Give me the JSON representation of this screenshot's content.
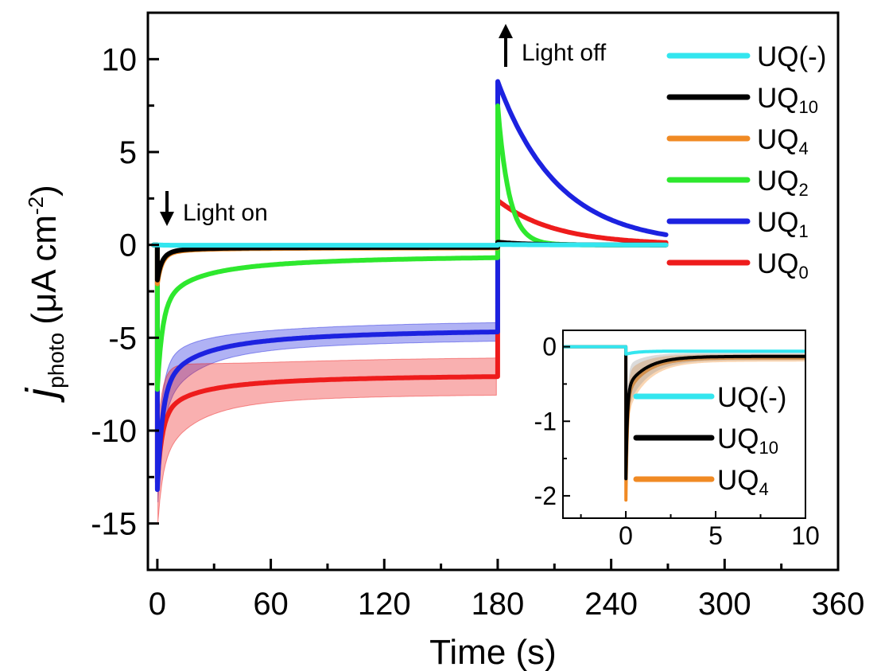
{
  "chart_data": [
    {
      "type": "line",
      "xlabel": "Time (s)",
      "ylabel": {
        "main": "j",
        "sub": "photo",
        "units": "(μA cm",
        "sup": "-2",
        "close": ")"
      },
      "xlim": [
        -5,
        360
      ],
      "ylim": [
        -17.5,
        12.5
      ],
      "xticks": [
        0,
        60,
        120,
        180,
        240,
        300,
        360
      ],
      "yticks": [
        10,
        5,
        0,
        -5,
        -10,
        -15
      ],
      "annotations": [
        {
          "text": "Light on",
          "x": 0,
          "arrow": "down"
        },
        {
          "text": "Light off",
          "x": 180,
          "arrow": "up"
        }
      ],
      "legend_position": "top-right",
      "series": [
        {
          "key": "UQ(-)",
          "label": "UQ(-)",
          "sub": "",
          "color": "#33e6ef",
          "on": 0,
          "steady": -0.02,
          "off_peak": 0.02,
          "tau_off": 20
        },
        {
          "key": "UQ10",
          "label": "UQ",
          "sub": "10",
          "color": "#000000",
          "on": -1.9,
          "steady": -0.12,
          "off_peak": 0.15,
          "tau_off": 15
        },
        {
          "key": "UQ4",
          "label": "UQ",
          "sub": "4",
          "color": "#f08a24",
          "on": -2.1,
          "steady": -0.15,
          "off_peak": 0.1,
          "tau_off": 15
        },
        {
          "key": "UQ2",
          "label": "UQ",
          "sub": "2",
          "color": "#2ee82e",
          "on": -7.8,
          "steady": -0.45,
          "off_peak": 7.5,
          "tau_off": 6
        },
        {
          "key": "UQ1",
          "label": "UQ",
          "sub": "1",
          "color": "#1c22e0",
          "on": -13.2,
          "steady": -4.4,
          "off_peak": 8.8,
          "tau_off": 32,
          "band": 0.5
        },
        {
          "key": "UQ0",
          "label": "UQ",
          "sub": "0",
          "color": "#ee1c1c",
          "on": -12.8,
          "steady": -6.9,
          "off_peak": 2.4,
          "tau_off": 30,
          "band": 1.0
        }
      ]
    },
    {
      "type": "line",
      "inset": true,
      "xlim": [
        -3.5,
        10
      ],
      "ylim": [
        -2.3,
        0.22
      ],
      "xticks": [
        0,
        5,
        10
      ],
      "yticks": [
        0,
        -1,
        -2
      ],
      "legend_position": "bottom-right",
      "series": [
        {
          "key": "UQ(-)",
          "label": "UQ(-)",
          "sub": "",
          "color": "#33e6ef",
          "on": -0.1,
          "steady": -0.06
        },
        {
          "key": "UQ10",
          "label": "UQ",
          "sub": "10",
          "color": "#000000",
          "on": -1.85,
          "steady": -0.13
        },
        {
          "key": "UQ4",
          "label": "UQ",
          "sub": "4",
          "color": "#f08a24",
          "on": -2.15,
          "steady": -0.15
        }
      ]
    }
  ]
}
